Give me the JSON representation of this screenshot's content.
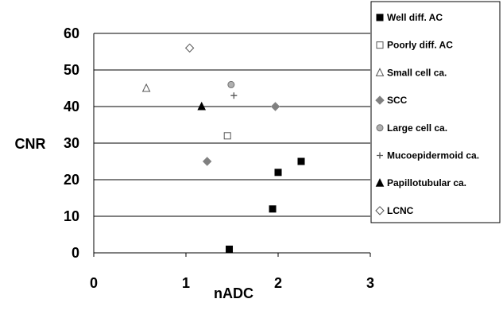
{
  "chart_data": {
    "type": "scatter",
    "xlabel": "nADC",
    "ylabel": "CNR",
    "xlim": [
      0,
      3
    ],
    "ylim": [
      0,
      60
    ],
    "x_ticks": [
      "0",
      "1",
      "2",
      "3"
    ],
    "y_ticks": [
      "0",
      "10",
      "20",
      "30",
      "40",
      "50",
      "60"
    ],
    "grid": "horizontal",
    "legend_position": "right",
    "series": [
      {
        "name": "Well diff. AC",
        "marker": "square",
        "fill": "#000000",
        "stroke": "#000000",
        "points": [
          [
            1.47,
            1
          ],
          [
            1.94,
            12
          ],
          [
            2.0,
            22
          ],
          [
            2.25,
            25
          ]
        ]
      },
      {
        "name": "Poorly diff. AC",
        "marker": "square",
        "fill": "#ffffff",
        "stroke": "#555555",
        "points": [
          [
            1.45,
            32
          ]
        ]
      },
      {
        "name": "Small cell ca.",
        "marker": "triangle",
        "fill": "#ffffff",
        "stroke": "#555555",
        "points": [
          [
            0.57,
            45
          ]
        ]
      },
      {
        "name": "SCC",
        "marker": "diamond",
        "fill": "#808080",
        "stroke": "#808080",
        "points": [
          [
            1.23,
            25
          ],
          [
            1.97,
            40
          ]
        ]
      },
      {
        "name": "Large cell ca.",
        "marker": "circle",
        "fill": "#b0b0b0",
        "stroke": "#707070",
        "points": [
          [
            1.49,
            46
          ]
        ]
      },
      {
        "name": "Mucoepidermoid ca.",
        "marker": "plus",
        "fill": "none",
        "stroke": "#555555",
        "points": [
          [
            1.52,
            43
          ]
        ]
      },
      {
        "name": "Papillotubular ca.",
        "marker": "triangle",
        "fill": "#000000",
        "stroke": "#000000",
        "points": [
          [
            1.17,
            40
          ]
        ]
      },
      {
        "name": "LCNC",
        "marker": "diamond",
        "fill": "#ffffff",
        "stroke": "#555555",
        "points": [
          [
            1.04,
            56
          ]
        ]
      }
    ]
  }
}
